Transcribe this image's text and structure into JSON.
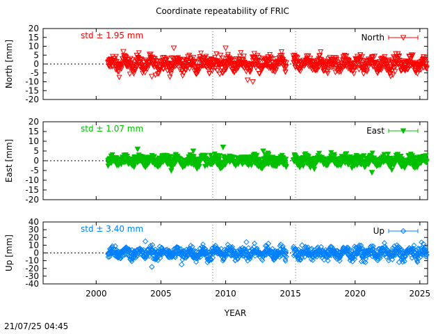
{
  "title": "Coordinate repeatability of FRIC",
  "timestamp": "21/07/25 04:45",
  "chart_data": {
    "type": "scatter",
    "title": "Coordinate repeatability of FRIC",
    "xlabel": "YEAR",
    "xlim": [
      1995.9,
      2025.6
    ],
    "xticks": [
      2000,
      2005,
      2010,
      2015,
      2020,
      2025
    ],
    "vlines": [
      2009.0,
      2015.4
    ],
    "data_start": 2000.9,
    "gap": [
      2014.7,
      2015.2
    ],
    "grid": false,
    "panels": [
      {
        "ylabel": "North [mm]",
        "ylim": [
          -20,
          20
        ],
        "yticks": [
          -20,
          -15,
          -10,
          -5,
          0,
          5,
          10,
          15,
          20
        ],
        "std_label": "std ± 1.95 mm",
        "series": [
          {
            "name": "North",
            "color": "#ff0000",
            "marker": "triangle-down-open",
            "spread": 5.5,
            "std": 1.95
          }
        ],
        "outliers": [
          [
            2002.1,
            7
          ],
          [
            2006.0,
            9
          ],
          [
            2010.0,
            9
          ],
          [
            2011.7,
            -9
          ],
          [
            2012.1,
            -10
          ],
          [
            2009.6,
            5
          ],
          [
            2004.3,
            -7
          ]
        ]
      },
      {
        "ylabel": "East [mm]",
        "ylim": [
          -20,
          20
        ],
        "yticks": [
          -20,
          -15,
          -10,
          -5,
          0,
          5,
          10,
          15,
          20
        ],
        "std_label": "std ± 1.07 mm",
        "series": [
          {
            "name": "East",
            "color": "#00c000",
            "marker": "triangle-down-filled",
            "spread": 3.5,
            "std": 1.07
          }
        ],
        "outliers": [
          [
            2003.2,
            6
          ],
          [
            2005.8,
            -5
          ],
          [
            2007.5,
            5
          ],
          [
            2009.8,
            7
          ],
          [
            2012.9,
            5
          ],
          [
            2021.3,
            -6
          ],
          [
            2024.5,
            -3
          ]
        ]
      },
      {
        "ylabel": "Up [mm]",
        "ylim": [
          -40,
          40
        ],
        "yticks": [
          -40,
          -30,
          -20,
          -10,
          0,
          10,
          20,
          30,
          40
        ],
        "std_label": "std ± 3.40 mm",
        "series": [
          {
            "name": "Up",
            "color": "#0080ff",
            "marker": "diamond-open",
            "spread": 10,
            "std": 3.4
          }
        ],
        "outliers": [
          [
            2003.8,
            15
          ],
          [
            2004.3,
            -18
          ],
          [
            2006.6,
            -15
          ],
          [
            2008.6,
            -12
          ],
          [
            2011.6,
            14
          ],
          [
            2013.3,
            12
          ],
          [
            2015.9,
            10
          ],
          [
            2018.8,
            -10
          ],
          [
            2023.4,
            -12
          ]
        ]
      }
    ]
  }
}
